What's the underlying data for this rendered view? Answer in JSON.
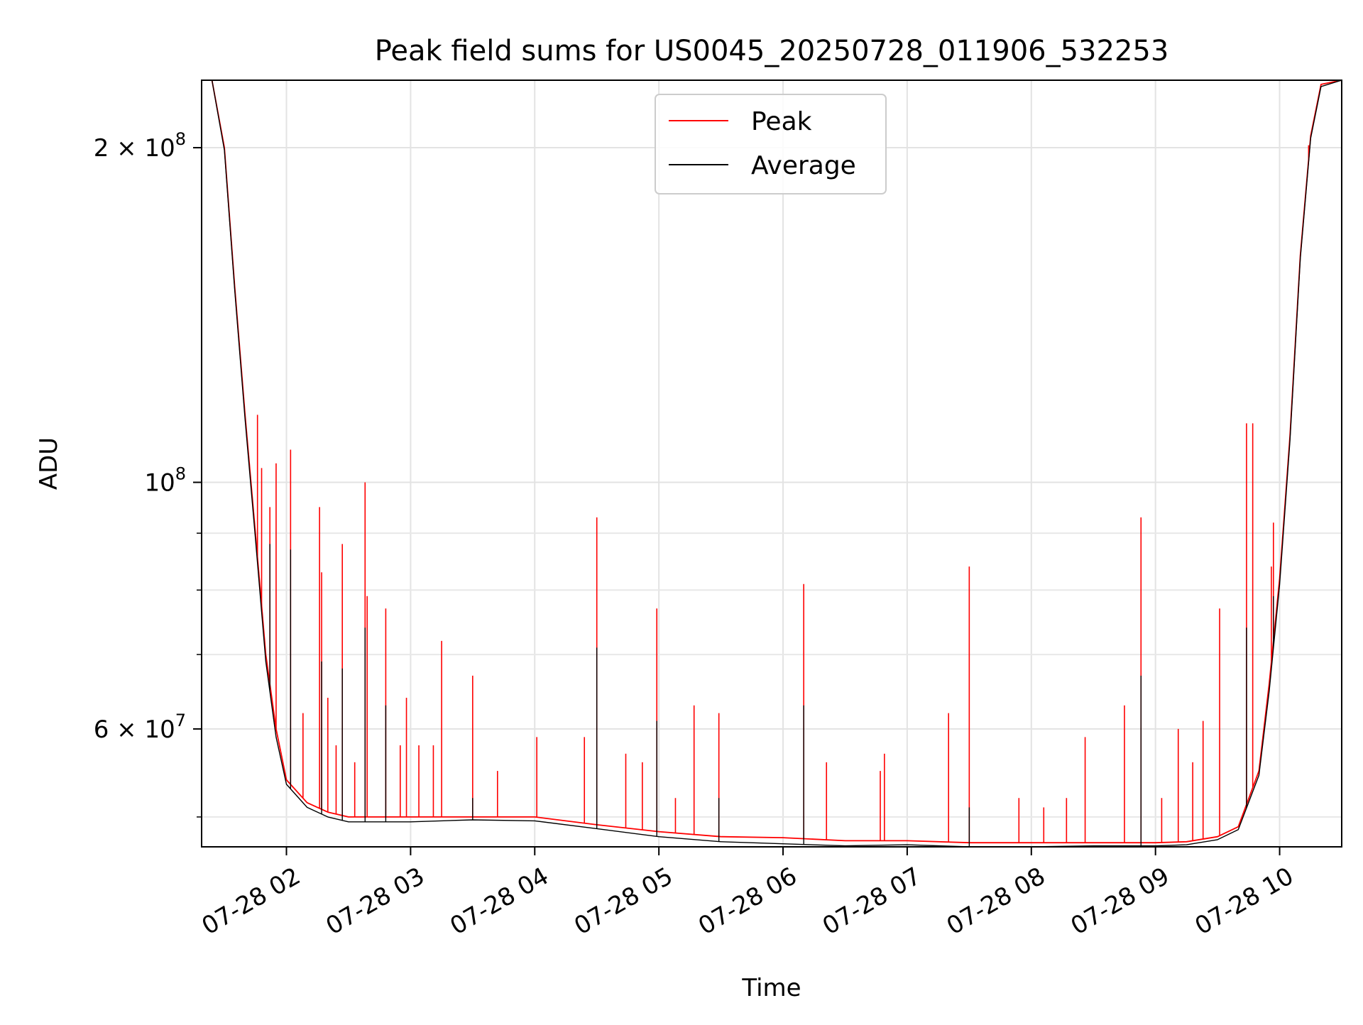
{
  "chart_data": {
    "type": "line",
    "title": "Peak field sums for US0045_20250728_011906_532253",
    "xlabel": "Time",
    "ylabel": "ADU",
    "yscale": "log",
    "grid": true,
    "legend_placement": "upper center",
    "xlim": [
      "2025-07-28 01:19",
      "2025-07-28 10:30"
    ],
    "ylim": [
      47000000,
      230000000
    ],
    "x_ticks": [
      {
        "value": "2025-07-28 02:00",
        "label": "07-28 02"
      },
      {
        "value": "2025-07-28 03:00",
        "label": "07-28 03"
      },
      {
        "value": "2025-07-28 04:00",
        "label": "07-28 04"
      },
      {
        "value": "2025-07-28 05:00",
        "label": "07-28 05"
      },
      {
        "value": "2025-07-28 06:00",
        "label": "07-28 06"
      },
      {
        "value": "2025-07-28 07:00",
        "label": "07-28 07"
      },
      {
        "value": "2025-07-28 08:00",
        "label": "07-28 08"
      },
      {
        "value": "2025-07-28 09:00",
        "label": "07-28 09"
      },
      {
        "value": "2025-07-28 10:00",
        "label": "07-28 10"
      }
    ],
    "y_ticks_major": [
      {
        "value": 60000000,
        "mantissa": "6",
        "exponent": "7"
      },
      {
        "value": 100000000,
        "mantissa": "",
        "exponent": "8"
      },
      {
        "value": 200000000,
        "mantissa": "2",
        "exponent": "8"
      }
    ],
    "y_ticks_minor": [
      50000000,
      70000000,
      80000000,
      90000000
    ],
    "base_label": "10",
    "times_label": "×",
    "series": [
      {
        "name": "Peak",
        "color": "#ff0000",
        "x": [
          "2025-07-28 01:19",
          "2025-07-28 01:24",
          "2025-07-28 01:30",
          "2025-07-28 01:35",
          "2025-07-28 01:40",
          "2025-07-28 01:45",
          "2025-07-28 01:50",
          "2025-07-28 01:55",
          "2025-07-28 02:00",
          "2025-07-28 02:10",
          "2025-07-28 02:20",
          "2025-07-28 02:30",
          "2025-07-28 03:00",
          "2025-07-28 03:30",
          "2025-07-28 04:00",
          "2025-07-28 04:30",
          "2025-07-28 05:00",
          "2025-07-28 05:30",
          "2025-07-28 06:00",
          "2025-07-28 06:30",
          "2025-07-28 07:00",
          "2025-07-28 07:30",
          "2025-07-28 08:00",
          "2025-07-28 08:30",
          "2025-07-28 09:00",
          "2025-07-28 09:15",
          "2025-07-28 09:30",
          "2025-07-28 09:40",
          "2025-07-28 09:50",
          "2025-07-28 09:55",
          "2025-07-28 10:00",
          "2025-07-28 10:05",
          "2025-07-28 10:10",
          "2025-07-28 10:15",
          "2025-07-28 10:20",
          "2025-07-28 10:30"
        ],
        "y": [
          230000000,
          230000000,
          200000000,
          150000000,
          115000000,
          90000000,
          70000000,
          60000000,
          54000000,
          51500000,
          50500000,
          50000000,
          50000000,
          50000000,
          50000000,
          49200000,
          48500000,
          48000000,
          47900000,
          47600000,
          47600000,
          47400000,
          47400000,
          47400000,
          47400000,
          47500000,
          48000000,
          49000000,
          55000000,
          66000000,
          82000000,
          110000000,
          160000000,
          205000000,
          228000000,
          230000000
        ],
        "spikes": [
          {
            "x": "2025-07-28 01:46",
            "y": 115000000
          },
          {
            "x": "2025-07-28 01:48",
            "y": 103000000
          },
          {
            "x": "2025-07-28 01:52",
            "y": 95000000
          },
          {
            "x": "2025-07-28 01:55",
            "y": 104000000
          },
          {
            "x": "2025-07-28 02:02",
            "y": 107000000
          },
          {
            "x": "2025-07-28 02:08",
            "y": 62000000
          },
          {
            "x": "2025-07-28 02:16",
            "y": 95000000
          },
          {
            "x": "2025-07-28 02:17",
            "y": 83000000
          },
          {
            "x": "2025-07-28 02:20",
            "y": 64000000
          },
          {
            "x": "2025-07-28 02:24",
            "y": 58000000
          },
          {
            "x": "2025-07-28 02:27",
            "y": 88000000
          },
          {
            "x": "2025-07-28 02:33",
            "y": 56000000
          },
          {
            "x": "2025-07-28 02:38",
            "y": 100000000
          },
          {
            "x": "2025-07-28 02:39",
            "y": 79000000
          },
          {
            "x": "2025-07-28 02:48",
            "y": 77000000
          },
          {
            "x": "2025-07-28 02:55",
            "y": 58000000
          },
          {
            "x": "2025-07-28 02:58",
            "y": 64000000
          },
          {
            "x": "2025-07-28 03:04",
            "y": 58000000
          },
          {
            "x": "2025-07-28 03:11",
            "y": 58000000
          },
          {
            "x": "2025-07-28 03:15",
            "y": 72000000
          },
          {
            "x": "2025-07-28 03:30",
            "y": 67000000
          },
          {
            "x": "2025-07-28 03:42",
            "y": 55000000
          },
          {
            "x": "2025-07-28 04:01",
            "y": 59000000
          },
          {
            "x": "2025-07-28 04:24",
            "y": 59000000
          },
          {
            "x": "2025-07-28 04:30",
            "y": 93000000
          },
          {
            "x": "2025-07-28 04:44",
            "y": 57000000
          },
          {
            "x": "2025-07-28 04:52",
            "y": 56000000
          },
          {
            "x": "2025-07-28 04:59",
            "y": 77000000
          },
          {
            "x": "2025-07-28 05:08",
            "y": 52000000
          },
          {
            "x": "2025-07-28 05:17",
            "y": 63000000
          },
          {
            "x": "2025-07-28 05:29",
            "y": 62000000
          },
          {
            "x": "2025-07-28 06:10",
            "y": 81000000
          },
          {
            "x": "2025-07-28 06:21",
            "y": 56000000
          },
          {
            "x": "2025-07-28 06:47",
            "y": 55000000
          },
          {
            "x": "2025-07-28 06:49",
            "y": 57000000
          },
          {
            "x": "2025-07-28 07:20",
            "y": 62000000
          },
          {
            "x": "2025-07-28 07:30",
            "y": 84000000
          },
          {
            "x": "2025-07-28 07:54",
            "y": 52000000
          },
          {
            "x": "2025-07-28 08:06",
            "y": 51000000
          },
          {
            "x": "2025-07-28 08:17",
            "y": 52000000
          },
          {
            "x": "2025-07-28 08:26",
            "y": 59000000
          },
          {
            "x": "2025-07-28 08:45",
            "y": 63000000
          },
          {
            "x": "2025-07-28 08:53",
            "y": 93000000
          },
          {
            "x": "2025-07-28 09:03",
            "y": 52000000
          },
          {
            "x": "2025-07-28 09:11",
            "y": 60000000
          },
          {
            "x": "2025-07-28 09:18",
            "y": 56000000
          },
          {
            "x": "2025-07-28 09:23",
            "y": 61000000
          },
          {
            "x": "2025-07-28 09:31",
            "y": 77000000
          },
          {
            "x": "2025-07-28 09:44",
            "y": 113000000
          },
          {
            "x": "2025-07-28 09:47",
            "y": 113000000
          },
          {
            "x": "2025-07-28 09:56",
            "y": 84000000
          },
          {
            "x": "2025-07-28 09:57",
            "y": 92000000
          },
          {
            "x": "2025-07-28 10:14",
            "y": 201000000
          }
        ]
      },
      {
        "name": "Average",
        "color": "#000000",
        "x": [
          "2025-07-28 01:19",
          "2025-07-28 01:24",
          "2025-07-28 01:30",
          "2025-07-28 01:35",
          "2025-07-28 01:40",
          "2025-07-28 01:45",
          "2025-07-28 01:50",
          "2025-07-28 01:55",
          "2025-07-28 02:00",
          "2025-07-28 02:10",
          "2025-07-28 02:20",
          "2025-07-28 02:30",
          "2025-07-28 03:00",
          "2025-07-28 03:30",
          "2025-07-28 04:00",
          "2025-07-28 04:30",
          "2025-07-28 05:00",
          "2025-07-28 05:30",
          "2025-07-28 06:00",
          "2025-07-28 06:30",
          "2025-07-28 07:00",
          "2025-07-28 07:30",
          "2025-07-28 08:00",
          "2025-07-28 08:30",
          "2025-07-28 09:00",
          "2025-07-28 09:15",
          "2025-07-28 09:30",
          "2025-07-28 09:40",
          "2025-07-28 09:50",
          "2025-07-28 09:55",
          "2025-07-28 10:00",
          "2025-07-28 10:05",
          "2025-07-28 10:10",
          "2025-07-28 10:15",
          "2025-07-28 10:20",
          "2025-07-28 10:30"
        ],
        "y": [
          230000000,
          230000000,
          199000000,
          149000000,
          114000000,
          89000000,
          69000000,
          59000000,
          53500000,
          51000000,
          50000000,
          49500000,
          49500000,
          49700000,
          49600000,
          48800000,
          48000000,
          47500000,
          47300000,
          47100000,
          47200000,
          47000000,
          47000000,
          47100000,
          47100000,
          47200000,
          47700000,
          48700000,
          54500000,
          65000000,
          81000000,
          109000000,
          159000000,
          204000000,
          227000000,
          230000000
        ],
        "spikes": [
          {
            "x": "2025-07-28 01:52",
            "y": 88000000
          },
          {
            "x": "2025-07-28 02:02",
            "y": 87000000
          },
          {
            "x": "2025-07-28 02:17",
            "y": 69000000
          },
          {
            "x": "2025-07-28 02:27",
            "y": 68000000
          },
          {
            "x": "2025-07-28 02:38",
            "y": 74000000
          },
          {
            "x": "2025-07-28 02:48",
            "y": 63000000
          },
          {
            "x": "2025-07-28 03:30",
            "y": 52000000
          },
          {
            "x": "2025-07-28 04:30",
            "y": 71000000
          },
          {
            "x": "2025-07-28 04:59",
            "y": 61000000
          },
          {
            "x": "2025-07-28 05:29",
            "y": 52000000
          },
          {
            "x": "2025-07-28 06:10",
            "y": 63000000
          },
          {
            "x": "2025-07-28 07:30",
            "y": 51000000
          },
          {
            "x": "2025-07-28 08:53",
            "y": 67000000
          },
          {
            "x": "2025-07-28 09:44",
            "y": 74000000
          },
          {
            "x": "2025-07-28 09:57",
            "y": 79000000
          }
        ]
      }
    ]
  }
}
